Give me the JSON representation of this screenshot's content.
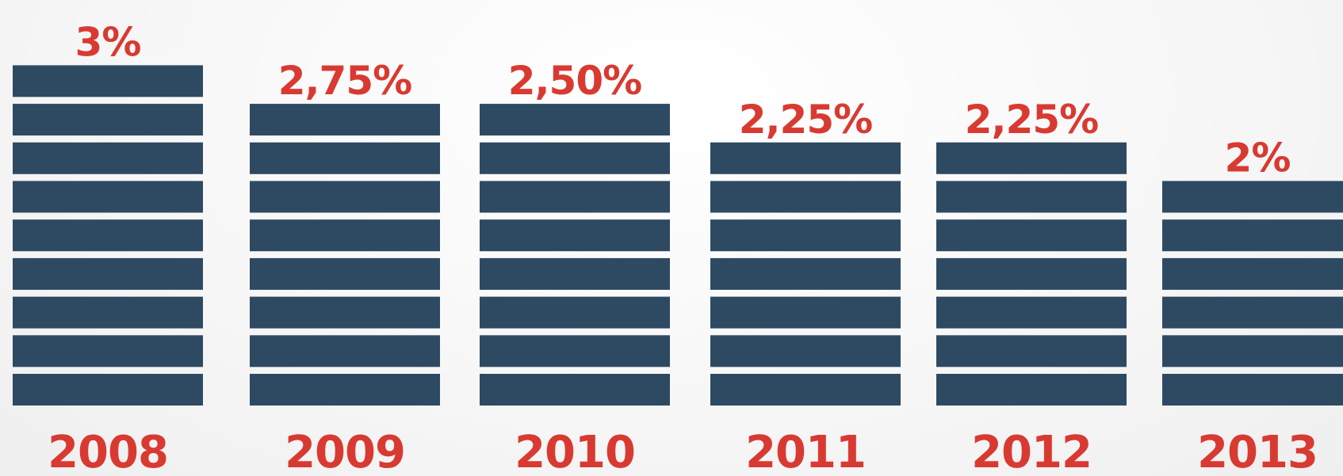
{
  "colors": {
    "bar": "#2e4a62",
    "value_text": "#d83a32",
    "year_text": "#d83a32"
  },
  "chart_data": {
    "type": "bar",
    "categories": [
      "2008",
      "2009",
      "2010",
      "2011",
      "2012",
      "2013"
    ],
    "values": [
      3,
      2.75,
      2.5,
      2.25,
      2.25,
      2
    ],
    "value_labels": [
      "3%",
      "2,75%",
      "2,50%",
      "2,25%",
      "2,25%",
      "2%"
    ],
    "title": "",
    "xlabel": "",
    "ylabel": "",
    "ylim": [
      0,
      3
    ],
    "grid": false,
    "legend": "none"
  }
}
